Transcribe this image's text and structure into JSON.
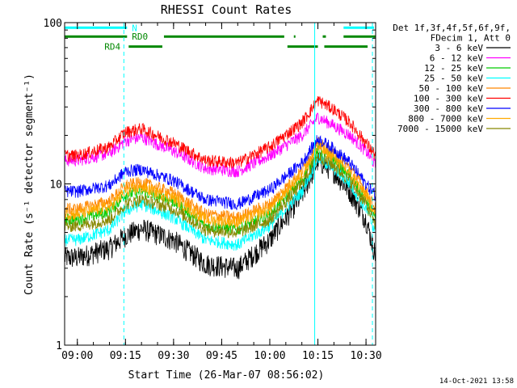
{
  "chart_data": {
    "type": "line",
    "title": "RHESSI Count Rates",
    "xlabel": "Start Time (26-Mar-07 08:56:02)",
    "ylabel": "Count Rate (s⁻¹ detector segment⁻¹)",
    "x_range": [
      "08:56:02",
      "10:33:00"
    ],
    "x_ticks": [
      "09:00",
      "09:15",
      "09:30",
      "09:45",
      "10:00",
      "10:15",
      "10:30"
    ],
    "y_scale": "log",
    "ylim": [
      1,
      100
    ],
    "y_ticks": [
      "1",
      "10",
      "100"
    ],
    "grid": false,
    "legend_position": "right",
    "legend_header": [
      "Det 1f,3f,4f,5f,6f,9f,",
      "FDecim 1, Att 0"
    ],
    "timestamp": "14-Oct-2021 13:58",
    "series": [
      {
        "name": "3 - 6 keV",
        "color": "#000000",
        "x": [
          "09:00",
          "09:10",
          "09:15",
          "09:20",
          "09:30",
          "09:40",
          "09:50",
          "10:00",
          "10:10",
          "10:15",
          "10:20",
          "10:25",
          "10:30",
          "10:33"
        ],
        "values": [
          3.5,
          4.0,
          4.8,
          5.3,
          4.5,
          3.2,
          3.0,
          4.5,
          8.5,
          14,
          12,
          9,
          6,
          3.6
        ]
      },
      {
        "name": "6 - 12 keV",
        "color": "#ff00ff",
        "x": [
          "09:00",
          "09:10",
          "09:15",
          "09:20",
          "09:30",
          "09:40",
          "09:50",
          "10:00",
          "10:10",
          "10:15",
          "10:20",
          "10:25",
          "10:30",
          "10:33"
        ],
        "values": [
          14,
          15.5,
          18.5,
          19.5,
          16,
          12.5,
          12,
          15,
          20,
          26,
          23,
          20,
          16,
          13
        ]
      },
      {
        "name": "12 - 25 keV",
        "color": "#00cc00",
        "x": [
          "09:00",
          "09:10",
          "09:15",
          "09:20",
          "09:30",
          "09:40",
          "09:50",
          "10:00",
          "10:10",
          "10:15",
          "10:20",
          "10:25",
          "10:30",
          "10:33"
        ],
        "values": [
          6,
          6.8,
          8.6,
          9.0,
          7.8,
          5.5,
          5.2,
          6.5,
          10.5,
          16,
          14,
          11,
          8,
          6
        ]
      },
      {
        "name": "25 - 50 keV",
        "color": "#00ffff",
        "x": [
          "09:00",
          "09:10",
          "09:15",
          "09:20",
          "09:30",
          "09:40",
          "09:50",
          "10:00",
          "10:10",
          "10:15",
          "10:20",
          "10:25",
          "10:30",
          "10:33"
        ],
        "values": [
          4.5,
          5.2,
          6.8,
          7.5,
          6.2,
          4.5,
          4.2,
          5.5,
          9.0,
          14.5,
          12.5,
          10,
          7,
          5
        ]
      },
      {
        "name": "50 - 100 keV",
        "color": "#ff8800",
        "x": [
          "09:00",
          "09:10",
          "09:15",
          "09:20",
          "09:30",
          "09:40",
          "09:50",
          "10:00",
          "10:10",
          "10:15",
          "10:20",
          "10:25",
          "10:30",
          "10:33"
        ],
        "values": [
          7,
          7.8,
          9.8,
          10.2,
          8.8,
          6.5,
          6.2,
          7.5,
          12,
          18,
          15.5,
          12.5,
          9,
          7
        ]
      },
      {
        "name": "100 - 300 keV",
        "color": "#ff0000",
        "x": [
          "09:00",
          "09:10",
          "09:15",
          "09:20",
          "09:30",
          "09:40",
          "09:50",
          "10:00",
          "10:10",
          "10:15",
          "10:20",
          "10:25",
          "10:30",
          "10:33"
        ],
        "values": [
          15,
          17,
          21,
          22,
          18,
          14,
          13.5,
          17,
          24,
          33,
          29,
          24,
          18,
          15
        ]
      },
      {
        "name": "300 - 800 keV",
        "color": "#0000ff",
        "x": [
          "09:00",
          "09:10",
          "09:15",
          "09:20",
          "09:30",
          "09:40",
          "09:50",
          "10:00",
          "10:10",
          "10:15",
          "10:20",
          "10:25",
          "10:30",
          "10:33"
        ],
        "values": [
          9,
          9.8,
          12,
          12.3,
          10.5,
          8.0,
          7.5,
          9.2,
          13.5,
          19,
          16.5,
          13.5,
          10,
          8.5
        ]
      },
      {
        "name": "800 - 7000 keV",
        "color": "#ffaa00",
        "x": [
          "09:00",
          "09:10",
          "09:15",
          "09:20",
          "09:30",
          "09:40",
          "09:50",
          "10:00",
          "10:10",
          "10:15",
          "10:20",
          "10:25",
          "10:30",
          "10:33"
        ],
        "values": [
          6.5,
          7.2,
          9.0,
          9.5,
          8.2,
          6.0,
          5.8,
          7.0,
          11.5,
          17,
          14.5,
          11.5,
          8.5,
          6.5
        ]
      },
      {
        "name": "7000 - 15000 keV",
        "color": "#888800",
        "x": [
          "09:00",
          "09:10",
          "09:15",
          "09:20",
          "09:30",
          "09:40",
          "09:50",
          "10:00",
          "10:10",
          "10:15",
          "10:20",
          "10:25",
          "10:30",
          "10:33"
        ],
        "values": [
          5.5,
          6.0,
          7.5,
          8.0,
          7.0,
          5.2,
          5.0,
          6.0,
          10,
          15,
          13,
          10.5,
          7.5,
          5.5
        ]
      }
    ],
    "flags": [
      {
        "label": "N",
        "color": "#00ffff",
        "y_level": 93,
        "segments": [
          [
            "08:56:02",
            "09:15:30"
          ],
          [
            "10:23:00",
            "10:32:30"
          ]
        ]
      },
      {
        "label": "RD0",
        "color": "#008800",
        "y_level": 82,
        "segments": [
          [
            "08:56:02",
            "09:15:30"
          ],
          [
            "09:27:00",
            "10:04:30"
          ],
          [
            "10:07:30",
            "10:08:00"
          ],
          [
            "10:16:30",
            "10:17:30"
          ],
          [
            "10:23:00",
            "10:33:00"
          ]
        ]
      },
      {
        "label": "RD4",
        "color": "#008800",
        "y_level": 71,
        "segments": [
          [
            "09:16:00",
            "09:26:30"
          ],
          [
            "10:05:30",
            "10:15:00"
          ],
          [
            "10:17:00",
            "10:30:30"
          ]
        ]
      }
    ],
    "vertical_lines": [
      {
        "x": "08:56:02",
        "style": "solid",
        "color": "#00ffff"
      },
      {
        "x": "09:14:30",
        "style": "dashed",
        "color": "#00ffff"
      },
      {
        "x": "10:14:00",
        "style": "solid",
        "color": "#00ffff"
      },
      {
        "x": "10:32:00",
        "style": "dashed",
        "color": "#00ffff"
      }
    ]
  }
}
